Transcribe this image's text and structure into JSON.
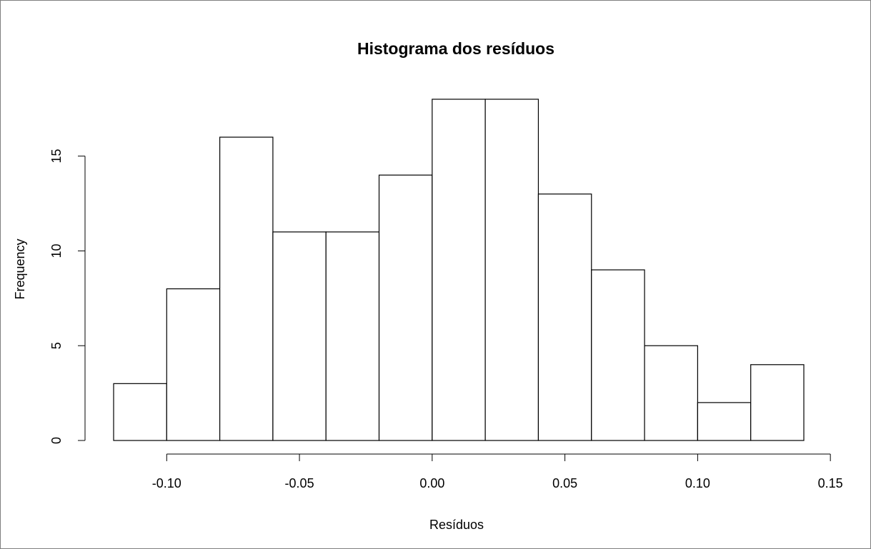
{
  "chart_data": {
    "type": "histogram",
    "title": "Histograma dos resíduos",
    "xlabel": "Resíduos",
    "ylabel": "Frequency",
    "bin_edges": [
      -0.12,
      -0.1,
      -0.08,
      -0.06,
      -0.04,
      -0.02,
      0.0,
      0.02,
      0.04,
      0.06,
      0.08,
      0.1,
      0.12,
      0.14
    ],
    "values": [
      3,
      8,
      16,
      11,
      11,
      14,
      18,
      18,
      13,
      9,
      5,
      2,
      4
    ],
    "xlim": [
      -0.12,
      0.14
    ],
    "ylim": [
      0,
      18
    ],
    "x_ticks": [
      -0.1,
      -0.05,
      0.0,
      0.05,
      0.1,
      0.15
    ],
    "x_tick_labels": [
      "-0.10",
      "-0.05",
      "0.00",
      "0.05",
      "0.10",
      "0.15"
    ],
    "y_ticks": [
      0,
      5,
      10,
      15
    ],
    "y_tick_labels": [
      "0",
      "5",
      "10",
      "15"
    ],
    "bar_fill": "#ffffff",
    "bar_stroke": "#000000",
    "grid": false,
    "legend": "none"
  }
}
